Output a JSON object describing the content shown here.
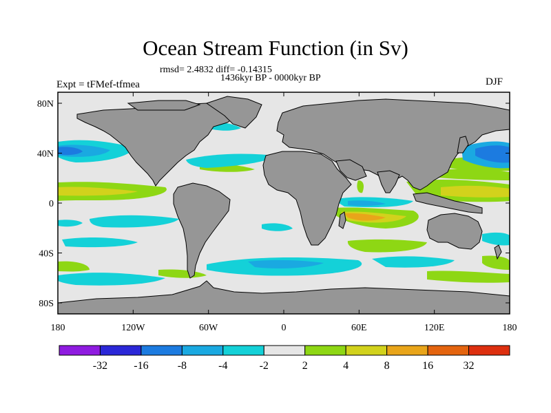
{
  "title": "Ocean Stream Function (in Sv)",
  "stats": "rmsd= 2.4832 diff= -0.14315",
  "period": "1436kyr BP - 0000kyr BP",
  "experiment": "Expt = tFMef-tfmea",
  "season": "DJF",
  "axes": {
    "x_ticks": [
      "180",
      "120W",
      "60W",
      "0",
      "60E",
      "120E",
      "180"
    ],
    "y_ticks": [
      "80N",
      "40N",
      "0",
      "40S",
      "80S"
    ]
  },
  "colorbar": {
    "labels": [
      "-32",
      "-16",
      "-8",
      "-4",
      "-2",
      "2",
      "4",
      "8",
      "16",
      "32"
    ],
    "colors": [
      "#8f1be0",
      "#2b27d8",
      "#1c7be0",
      "#1aa9e1",
      "#14d1d8",
      "#e6e6e6",
      "#8ed714",
      "#d2d21c",
      "#e9a51a",
      "#e4640f",
      "#dd2f0f"
    ]
  },
  "colors": {
    "ocean_background": "#e6e6e6",
    "land": "#969696",
    "coast": "#000000"
  }
}
